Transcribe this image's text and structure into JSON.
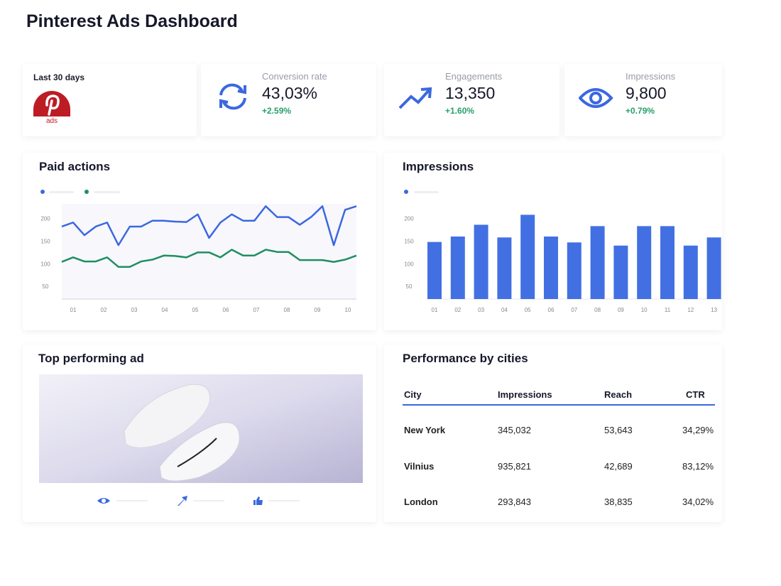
{
  "page_title": "Pinterest Ads Dashboard",
  "period_card": {
    "label": "Last 30 days",
    "logo_text": "ads"
  },
  "kpis": [
    {
      "label": "Conversion rate",
      "value": "43,03%",
      "delta": "+2.59%",
      "icon": "refresh-icon"
    },
    {
      "label": "Engagements",
      "value": "13,350",
      "delta": "+1.60%",
      "icon": "trending-up-icon"
    },
    {
      "label": "Impressions",
      "value": "9,800",
      "delta": "+0.79%",
      "icon": "eye-icon"
    }
  ],
  "colors": {
    "blue": "#3b68e0",
    "green": "#1f8f5f",
    "bar": "#4270e3",
    "pinterest": "#bd1c24"
  },
  "paid_actions": {
    "title": "Paid actions"
  },
  "impressions_chart": {
    "title": "Impressions"
  },
  "chart_data": [
    {
      "type": "line",
      "title": "Paid actions",
      "x_ticks": [
        "01",
        "02",
        "03",
        "04",
        "05",
        "06",
        "07",
        "08",
        "09",
        "10"
      ],
      "y_ticks": [
        50,
        100,
        150,
        200
      ],
      "ylim": [
        22,
        240
      ],
      "series": [
        {
          "name": "series-1",
          "color": "#3b68e0",
          "values": [
            182,
            191,
            163,
            182,
            191,
            141,
            182,
            182,
            195,
            195,
            193,
            192,
            209,
            157,
            191,
            209,
            195,
            195,
            227,
            203,
            203,
            186,
            203,
            227,
            141,
            219,
            227
          ]
        },
        {
          "name": "series-2",
          "color": "#1f8f5f",
          "values": [
            104,
            114,
            105,
            105,
            114,
            93,
            93,
            105,
            109,
            118,
            117,
            114,
            125,
            125,
            114,
            131,
            118,
            118,
            131,
            126,
            126,
            108,
            108,
            108,
            104,
            109,
            118
          ]
        }
      ]
    },
    {
      "type": "bar",
      "title": "Impressions",
      "categories": [
        "01",
        "02",
        "03",
        "04",
        "05",
        "06",
        "07",
        "08",
        "09",
        "10",
        "11",
        "12",
        "13"
      ],
      "values": [
        148,
        160,
        186,
        158,
        208,
        160,
        147,
        183,
        140,
        183,
        183,
        140,
        158
      ],
      "y_ticks": [
        50,
        100,
        150,
        200
      ],
      "ylim": [
        22,
        240
      ]
    }
  ],
  "top_ad": {
    "title": "Top performing ad",
    "stats": [
      {
        "icon": "eye-icon"
      },
      {
        "icon": "share-arrow-icon"
      },
      {
        "icon": "thumbs-up-icon"
      }
    ]
  },
  "cities": {
    "title": "Performance by cities",
    "headers": [
      "City",
      "Impressions",
      "Reach",
      "CTR"
    ],
    "rows": [
      [
        "New York",
        "345,032",
        "53,643",
        "34,29%"
      ],
      [
        "Vilnius",
        "935,821",
        "42,689",
        "83,12%"
      ],
      [
        "London",
        "293,843",
        "38,835",
        "34,02%"
      ]
    ]
  }
}
